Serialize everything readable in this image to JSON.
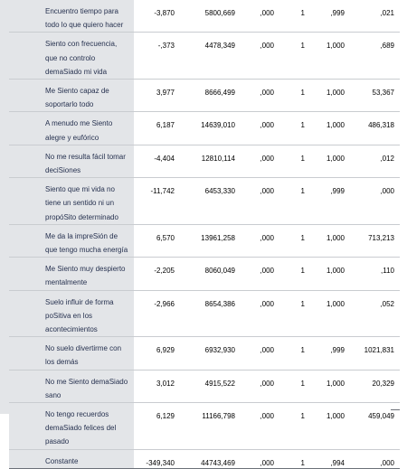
{
  "table": {
    "rows": [
      {
        "label": "Encuentro tiempo para\ntodo lo que quiero hacer",
        "b": "-3,870",
        "wald": "5800,669",
        "df": ",000",
        "gl": "1",
        "sig": ",999",
        "expb": ",021"
      },
      {
        "label": "Siento con frecuencia,\nque no controlo\ndemaSiado mi vida",
        "b": "-,373",
        "wald": "4478,349",
        "df": ",000",
        "gl": "1",
        "sig": "1,000",
        "expb": ",689"
      },
      {
        "label": "Me Siento capaz de\nsoportarlo todo",
        "b": "3,977",
        "wald": "8666,499",
        "df": ",000",
        "gl": "1",
        "sig": "1,000",
        "expb": "53,367"
      },
      {
        "label": "A menudo me Siento\nalegre y eufórico",
        "b": "6,187",
        "wald": "14639,010",
        "df": ",000",
        "gl": "1",
        "sig": "1,000",
        "expb": "486,318"
      },
      {
        "label": "No me resulta fácil tomar\ndeciSiones",
        "b": "-4,404",
        "wald": "12810,114",
        "df": ",000",
        "gl": "1",
        "sig": "1,000",
        "expb": ",012"
      },
      {
        "label": "Siento que mi vida no\ntiene un sentido ni un\npropóSito determinado",
        "b": "-11,742",
        "wald": "6453,330",
        "df": ",000",
        "gl": "1",
        "sig": ",999",
        "expb": ",000"
      },
      {
        "label": "Me da la impreSión de\nque tengo mucha energía",
        "b": "6,570",
        "wald": "13961,258",
        "df": ",000",
        "gl": "1",
        "sig": "1,000",
        "expb": "713,213"
      },
      {
        "label": "Me Siento muy despierto\nmentalmente",
        "b": "-2,205",
        "wald": "8060,049",
        "df": ",000",
        "gl": "1",
        "sig": "1,000",
        "expb": ",110"
      },
      {
        "label": "Suelo influir de forma\npoSitiva en los\nacontecimientos",
        "b": "-2,966",
        "wald": "8654,386",
        "df": ",000",
        "gl": "1",
        "sig": "1,000",
        "expb": ",052"
      },
      {
        "label": "No suelo divertirme con\nlos demás",
        "b": "6,929",
        "wald": "6932,930",
        "df": ",000",
        "gl": "1",
        "sig": ",999",
        "expb": "1021,831"
      },
      {
        "label": "No me Siento demaSiado\nsano",
        "b": "3,012",
        "wald": "4915,522",
        "df": ",000",
        "gl": "1",
        "sig": "1,000",
        "expb": "20,329"
      },
      {
        "label": "No tengo recuerdos\ndemaSiado felices del\npasado",
        "b": "6,129",
        "wald": "11166,798",
        "df": ",000",
        "gl": "1",
        "sig": "1,000",
        "expb": "459,049"
      },
      {
        "label": "Constante",
        "b": "-349,340",
        "wald": "44743,469",
        "df": ",000",
        "gl": "1",
        "sig": ",994",
        "expb": ",000"
      }
    ]
  }
}
